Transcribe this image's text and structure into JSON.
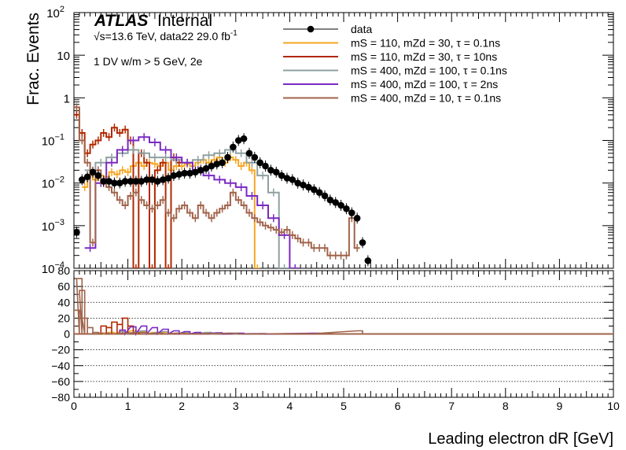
{
  "chart_data": {
    "type": "line",
    "experiment": "ATLAS",
    "status": "Internal",
    "energy_label": "√s=13.6 TeV, data22 29.0 fb",
    "lumi_superscript": "-1",
    "selection_label": "1 DV w/m > 5 GeV, 2e",
    "xlabel": "Leading electron dR [GeV]",
    "ylabel": "Frac. Events",
    "xlim": [
      0,
      10
    ],
    "ylim": [
      0.0001,
      100
    ],
    "y_scale": "log",
    "ratio_ylim": [
      -80,
      80
    ],
    "ratio_grid": "dashed horizontal",
    "x_ticks": [
      "0",
      "1",
      "2",
      "3",
      "4",
      "5",
      "6",
      "7",
      "8",
      "9",
      "10"
    ],
    "ratio_ticks": [
      "80",
      "60",
      "40",
      "20",
      "0",
      "−20",
      "−40",
      "−60",
      "−80"
    ],
    "legend_position": "top-right",
    "legend": [
      {
        "name": "data",
        "color": "#000000",
        "style": "marker"
      },
      {
        "name": "mS = 110, mZ_d = 30, τ = 0.1ns",
        "color": "#f5a623"
      },
      {
        "name": "mS = 110, mZ_d = 30, τ = 10ns",
        "color": "#b22800"
      },
      {
        "name": "mS = 400, mZ_d = 100, τ = 0.1ns",
        "color": "#8fa0a0"
      },
      {
        "name": "mS = 400, mZ_d = 100, τ = 2ns",
        "color": "#7a29c2"
      },
      {
        "name": "mS = 400, mZ_d = 10, τ = 0.1ns",
        "color": "#a0634a"
      }
    ],
    "series": [
      {
        "name": "data",
        "color": "#000000",
        "x": [
          0.05,
          0.15,
          0.25,
          0.35,
          0.45,
          0.55,
          0.65,
          0.75,
          0.85,
          0.95,
          1.05,
          1.15,
          1.25,
          1.35,
          1.45,
          1.55,
          1.65,
          1.75,
          1.85,
          1.95,
          2.05,
          2.15,
          2.25,
          2.35,
          2.45,
          2.55,
          2.65,
          2.75,
          2.85,
          2.95,
          3.05,
          3.15,
          3.25,
          3.35,
          3.45,
          3.55,
          3.65,
          3.75,
          3.85,
          3.95,
          4.05,
          4.15,
          4.25,
          4.35,
          4.45,
          4.55,
          4.65,
          4.75,
          4.85,
          4.95,
          5.05,
          5.15,
          5.25,
          5.35,
          5.45
        ],
        "y": [
          0.0007,
          0.012,
          0.014,
          0.018,
          0.015,
          0.011,
          0.011,
          0.01,
          0.01,
          0.011,
          0.011,
          0.011,
          0.011,
          0.012,
          0.012,
          0.011,
          0.012,
          0.013,
          0.015,
          0.016,
          0.017,
          0.017,
          0.018,
          0.02,
          0.022,
          0.025,
          0.028,
          0.03,
          0.04,
          0.07,
          0.1,
          0.11,
          0.05,
          0.04,
          0.03,
          0.025,
          0.02,
          0.018,
          0.015,
          0.013,
          0.012,
          0.01,
          0.009,
          0.008,
          0.007,
          0.006,
          0.005,
          0.004,
          0.0035,
          0.003,
          0.0025,
          0.002,
          0.0015,
          0.0004,
          0.00015
        ]
      },
      {
        "name": "mS = 110, mZ_d = 30, τ = 0.1ns",
        "color": "#f5a623",
        "x": [
          0.2,
          0.3,
          0.4,
          0.5,
          0.6,
          0.7,
          0.8,
          0.9,
          1.0,
          1.1,
          1.2,
          1.3,
          1.4,
          1.5,
          1.6,
          1.7,
          1.8,
          1.9,
          2.0,
          2.1,
          2.2,
          2.3,
          2.4,
          2.5,
          2.6,
          2.7,
          2.8,
          2.9,
          3.0,
          3.1,
          3.2,
          3.3,
          3.4
        ],
        "y": [
          0.008,
          0.015,
          0.012,
          0.015,
          0.014,
          0.018,
          0.016,
          0.02,
          0.018,
          0.025,
          0.03,
          0.025,
          0.03,
          0.028,
          0.025,
          0.03,
          0.02,
          0.025,
          0.025,
          0.028,
          0.025,
          0.03,
          0.035,
          0.03,
          0.035,
          0.04,
          0.03,
          0.04,
          0.035,
          0.025,
          0.03,
          0.02,
          0.0001
        ]
      },
      {
        "name": "mS = 110, mZ_d = 30, τ = 10ns",
        "color": "#b22800",
        "x": [
          0.05,
          0.15,
          0.25,
          0.35,
          0.45,
          0.55,
          0.65,
          0.75,
          0.85,
          0.95,
          1.05,
          1.15,
          1.25,
          1.35,
          1.45,
          1.55,
          1.65,
          1.75,
          1.85,
          1.95
        ],
        "y": [
          0.4,
          0.15,
          0.05,
          0.08,
          0.1,
          0.15,
          0.12,
          0.2,
          0.15,
          0.18,
          0.1,
          0.0001,
          0.05,
          0.03,
          0.0001,
          0.02,
          0.03,
          0.0001,
          0.04,
          0.03
        ]
      },
      {
        "name": "mS = 400, mZ_d = 100, τ = 0.1ns",
        "color": "#8fa0a0",
        "x": [
          0.3,
          0.5,
          0.7,
          0.9,
          1.1,
          1.3,
          1.5,
          1.7,
          1.9,
          2.1,
          2.3,
          2.5,
          2.7,
          2.9,
          3.1,
          3.3,
          3.5,
          3.7,
          3.9
        ],
        "y": [
          0.02,
          0.03,
          0.04,
          0.05,
          0.06,
          0.05,
          0.04,
          0.04,
          0.035,
          0.03,
          0.035,
          0.045,
          0.05,
          0.06,
          0.05,
          0.03,
          0.015,
          0.006,
          0.0001
        ]
      },
      {
        "name": "mS = 400, mZ_d = 100, τ = 2ns",
        "color": "#7a29c2",
        "x": [
          0.3,
          0.5,
          0.7,
          0.9,
          1.1,
          1.3,
          1.5,
          1.7,
          1.9,
          2.1,
          2.3,
          2.5,
          2.7,
          2.9,
          3.1,
          3.3,
          3.5,
          3.7,
          3.9,
          4.1
        ],
        "y": [
          0.0003,
          0.01,
          0.03,
          0.06,
          0.1,
          0.12,
          0.09,
          0.06,
          0.04,
          0.03,
          0.02,
          0.015,
          0.012,
          0.01,
          0.008,
          0.005,
          0.003,
          0.0015,
          0.0006,
          0.0001
        ]
      },
      {
        "name": "mS = 400, mZ_d = 10, τ = 0.1ns",
        "color": "#a0634a",
        "x": [
          0.05,
          0.15,
          0.25,
          0.35,
          0.45,
          0.55,
          0.65,
          0.75,
          0.85,
          0.95,
          1.05,
          1.15,
          1.25,
          1.35,
          1.45,
          1.55,
          1.65,
          1.75,
          1.85,
          1.95,
          2.05,
          2.15,
          2.25,
          2.35,
          2.45,
          2.55,
          2.65,
          2.75,
          2.85,
          2.95,
          3.05,
          3.15,
          3.25,
          3.35,
          3.45,
          3.55,
          3.65,
          3.75,
          3.85,
          3.95,
          4.05,
          4.15,
          4.25,
          4.35,
          4.45,
          4.55,
          4.65,
          4.75,
          4.85,
          4.95,
          5.05,
          5.15,
          5.25
        ],
        "y": [
          0.6,
          0.1,
          0.03,
          0.0004,
          0.02,
          0.01,
          0.008,
          0.006,
          0.004,
          0.003,
          0.005,
          0.006,
          0.004,
          0.003,
          0.0025,
          0.003,
          0.004,
          0.002,
          0.0015,
          0.0025,
          0.003,
          0.002,
          0.0015,
          0.003,
          0.002,
          0.0015,
          0.002,
          0.0025,
          0.003,
          0.006,
          0.004,
          0.003,
          0.002,
          0.0015,
          0.0012,
          0.001,
          0.0009,
          0.0008,
          0.0007,
          0.0008,
          0.0006,
          0.0005,
          0.0004,
          0.0004,
          0.0003,
          0.0003,
          0.0003,
          0.0002,
          0.0002,
          0.0002,
          0.0002,
          0.0015,
          0.0003
        ]
      }
    ],
    "ratio_series": [
      {
        "name": "mS = 110, mZ_d = 30, τ = 0.1ns",
        "color": "#f5a623",
        "x": [
          0.5,
          0.7,
          0.9,
          1.1,
          1.3,
          1.5,
          1.7,
          1.9,
          2.1,
          2.3
        ],
        "y": [
          1,
          2,
          3,
          4,
          3,
          2,
          2,
          1,
          1,
          0.5
        ]
      },
      {
        "name": "mS = 110, mZ_d = 30, τ = 10ns",
        "color": "#b22800",
        "x": [
          0.55,
          0.65,
          0.75,
          0.85,
          0.95,
          1.05,
          1.15
        ],
        "y": [
          10,
          8,
          15,
          12,
          20,
          10,
          2
        ]
      },
      {
        "name": "mS = 400, mZ_d = 100, τ = 0.1ns",
        "color": "#8fa0a0",
        "x": [
          0.9,
          1.3,
          1.7,
          2.1,
          2.5,
          2.9,
          3.3
        ],
        "y": [
          3,
          4,
          3,
          2,
          2,
          1,
          0.5
        ]
      },
      {
        "name": "mS = 400, mZ_d = 100, τ = 2ns",
        "color": "#7a29c2",
        "x": [
          0.9,
          1.1,
          1.3,
          1.5,
          1.7,
          1.9,
          2.1,
          2.3,
          2.7,
          3.1,
          3.5,
          4.5
        ],
        "y": [
          5,
          9,
          10,
          8,
          6,
          4,
          3,
          2,
          1.5,
          1,
          0.5,
          1
        ]
      },
      {
        "name": "mS = 400, mZ_d = 10, τ = 0.1ns",
        "color": "#a0634a",
        "x": [
          0.05,
          0.1,
          0.15,
          0.2,
          0.3,
          0.4,
          0.5,
          0.6,
          1.3,
          1.6,
          2.0,
          3.0,
          4.3,
          5.3
        ],
        "y": [
          30,
          70,
          55,
          20,
          8,
          2,
          1,
          1,
          2,
          1,
          1,
          1,
          0.5,
          4
        ]
      }
    ]
  }
}
